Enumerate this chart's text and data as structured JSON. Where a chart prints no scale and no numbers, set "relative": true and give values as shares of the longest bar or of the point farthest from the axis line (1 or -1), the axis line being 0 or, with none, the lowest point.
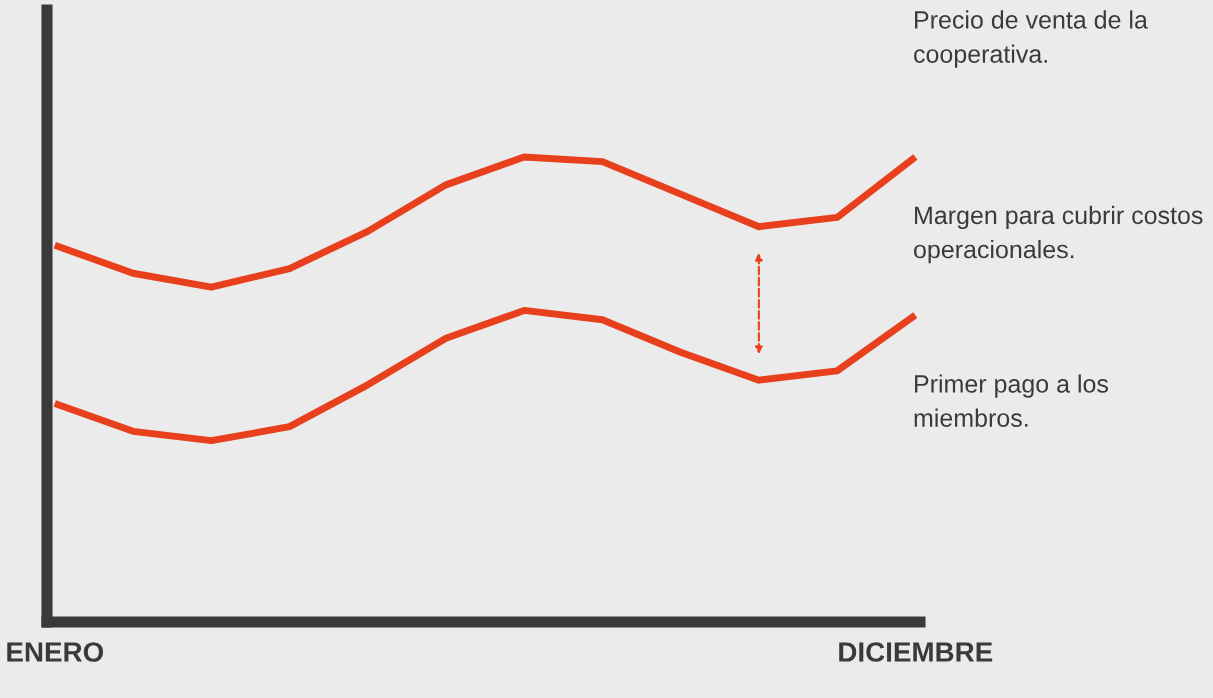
{
  "chart_data": {
    "type": "line",
    "relative": true,
    "categories": [
      "ENERO",
      null,
      null,
      null,
      null,
      null,
      null,
      null,
      null,
      null,
      null,
      "DICIEMBRE"
    ],
    "series": [
      {
        "name": "Precio de venta de la cooperativa.",
        "color": "#e8401c",
        "values": [
          0.81,
          0.75,
          0.72,
          0.76,
          0.84,
          0.94,
          1.0,
          0.99,
          0.92,
          0.85,
          0.87,
          1.0
        ]
      },
      {
        "name": "Primer pago a los miembros.",
        "color": "#e8401c",
        "values": [
          0.47,
          0.41,
          0.39,
          0.42,
          0.51,
          0.61,
          0.67,
          0.65,
          0.58,
          0.52,
          0.54,
          0.66
        ]
      }
    ],
    "annotations": [
      "Margen para cubrir costos operacionales."
    ],
    "legend": false,
    "grid": false,
    "line_style": "solid",
    "marker": "none"
  }
}
